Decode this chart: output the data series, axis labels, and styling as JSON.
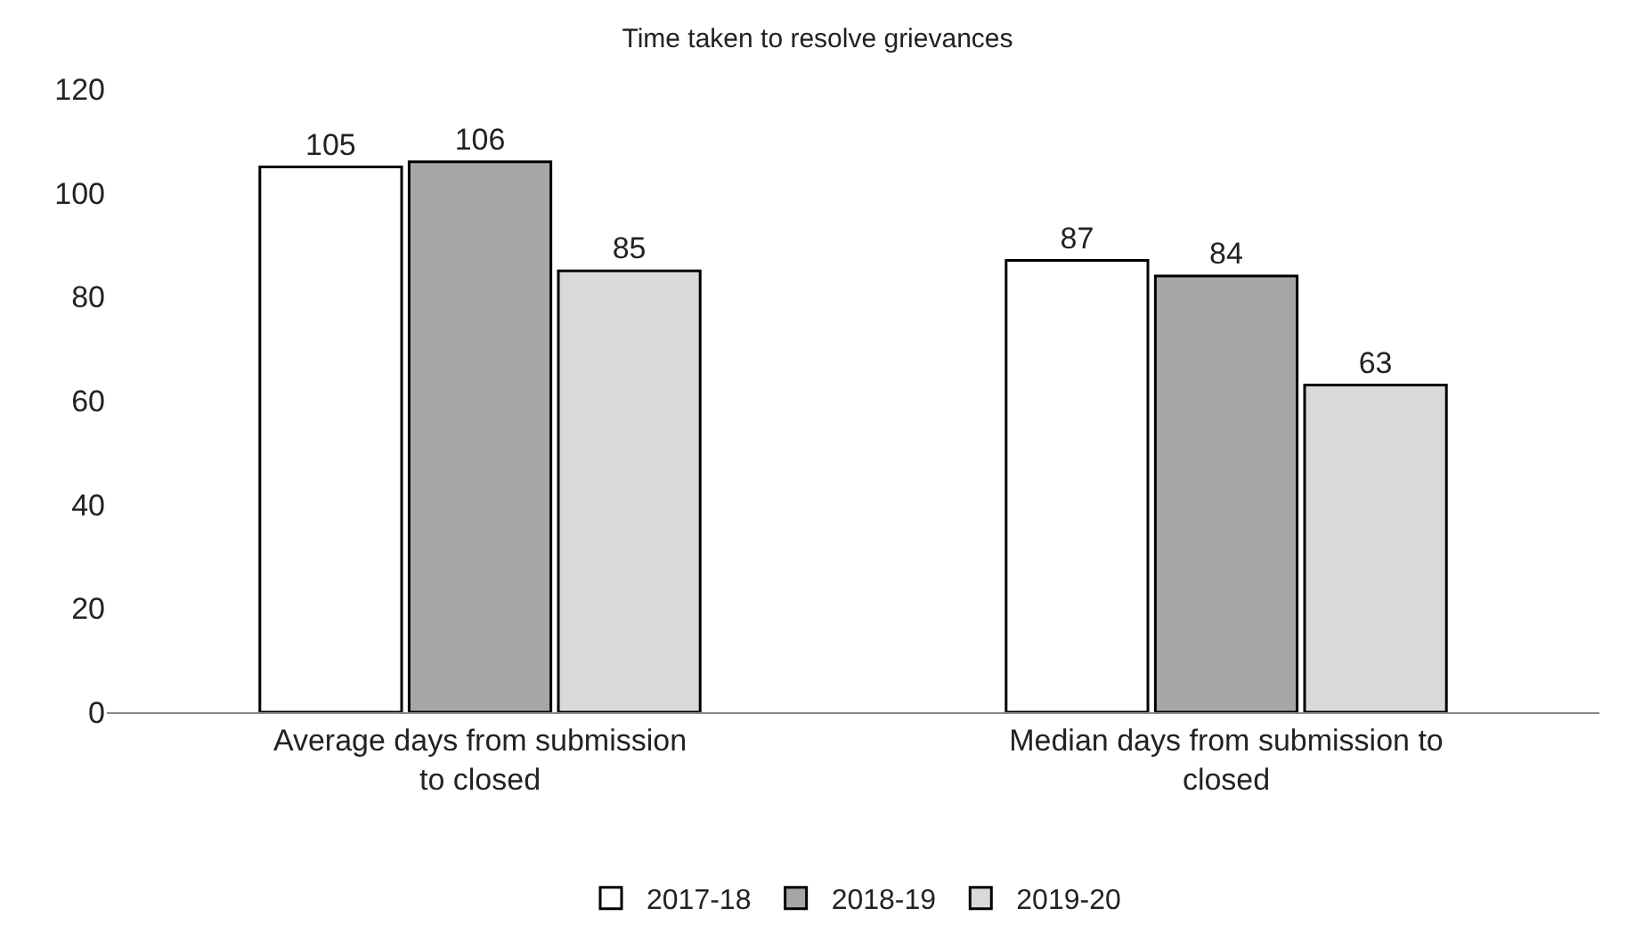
{
  "chart_data": {
    "type": "bar",
    "title": "Time taken to resolve grievances",
    "categories": [
      "Average days from submission to closed",
      "Median days from submission to closed"
    ],
    "series": [
      {
        "name": "2017-18",
        "color": "#ffffff",
        "values": [
          105,
          87
        ]
      },
      {
        "name": "2018-19",
        "color": "#a6a6a6",
        "values": [
          106,
          84
        ]
      },
      {
        "name": "2019-20",
        "color": "#d9d9d9",
        "values": [
          85,
          63
        ]
      }
    ],
    "ylim": [
      0,
      120
    ],
    "yticks": [
      0,
      20,
      40,
      60,
      80,
      100,
      120
    ],
    "legend": "bottom",
    "data_labels": true
  }
}
